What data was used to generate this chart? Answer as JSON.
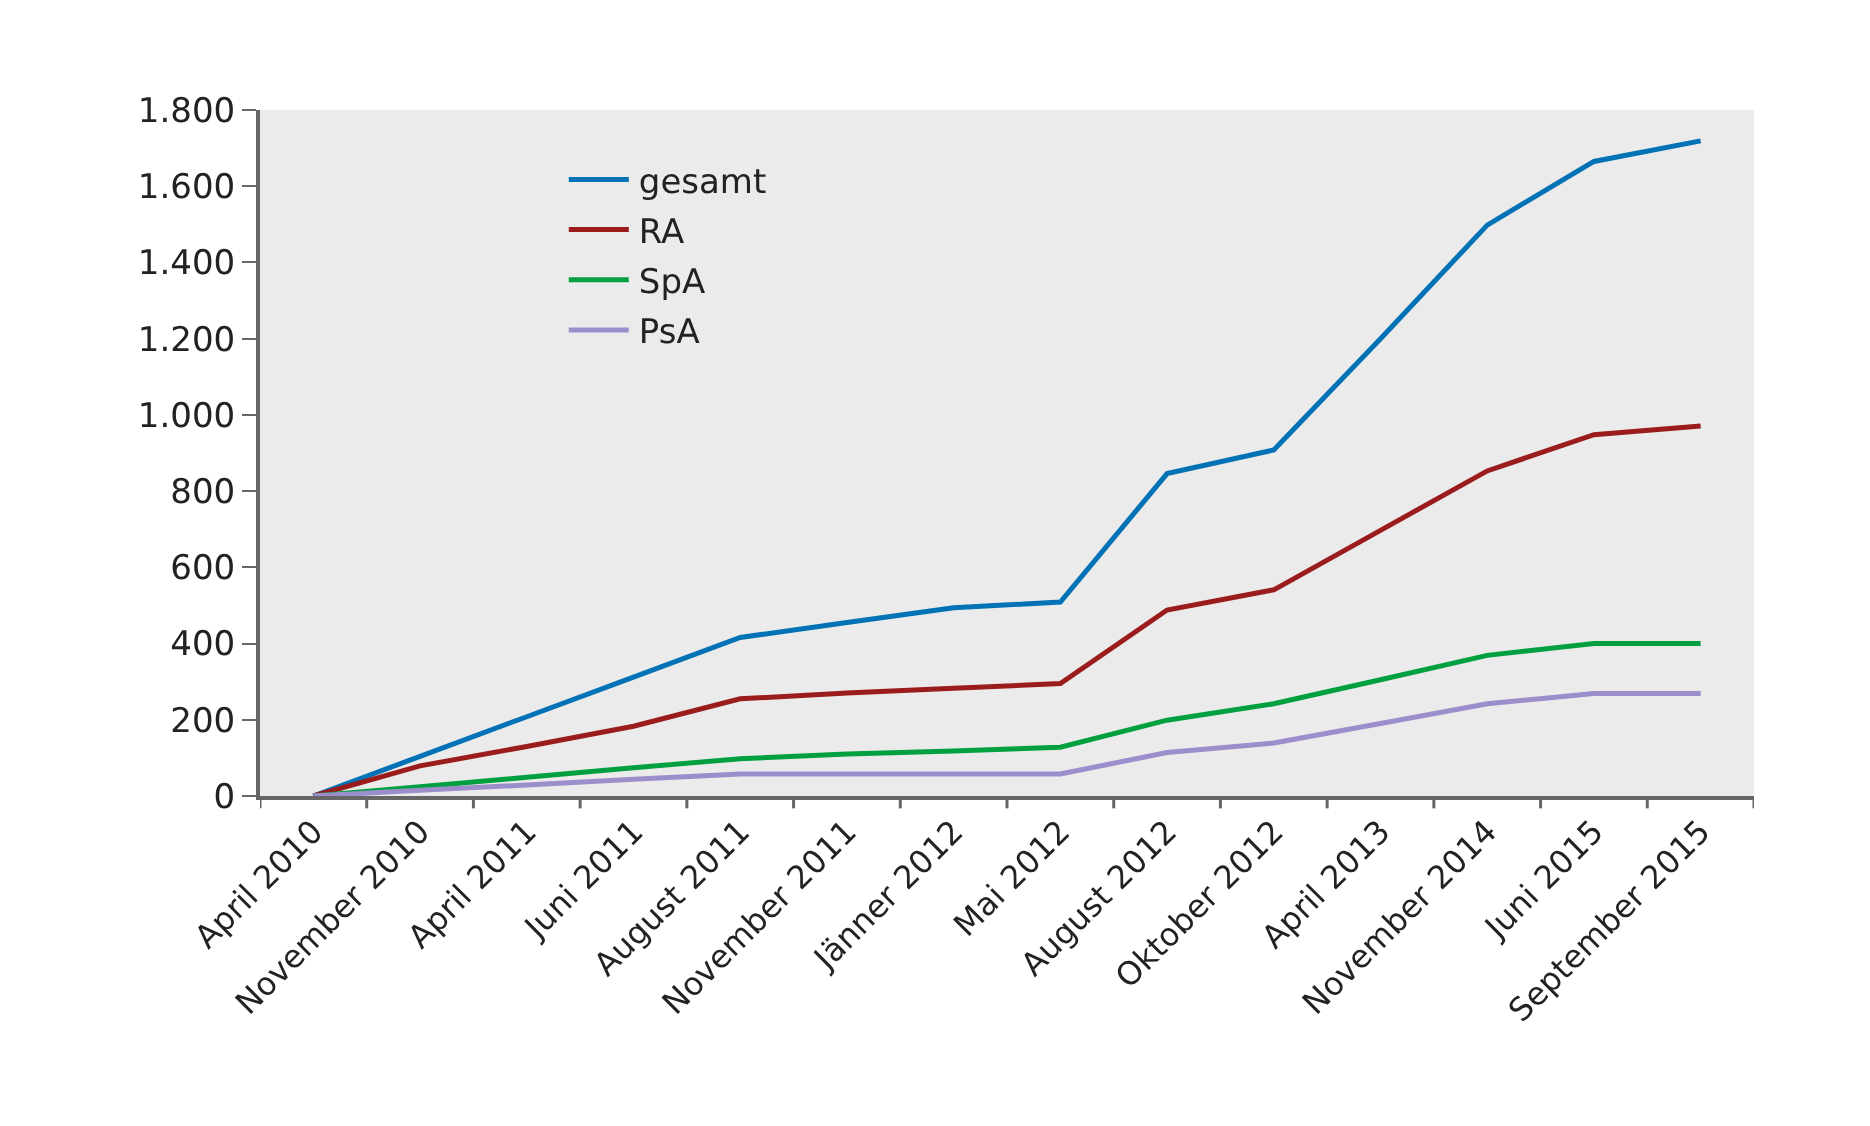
{
  "chart_data": {
    "type": "line",
    "categories": [
      "April 2010",
      "November 2010",
      "April 2011",
      "Juni 2011",
      "August 2011",
      "November 2011",
      "Jänner 2012",
      "Mai 2012",
      "August 2012",
      "Oktober 2012",
      "April 2013",
      "November 2014",
      "Juni 2015",
      "September 2015"
    ],
    "series": [
      {
        "name": "gesamt",
        "color": "#0072b5",
        "values": [
          0,
          104,
          208,
          312,
          416,
          455,
          494,
          509,
          846,
          908,
          1200,
          1498,
          1665,
          1719
        ]
      },
      {
        "name": "RA",
        "color": "#9b1c1c",
        "values": [
          0,
          79,
          130,
          183,
          255,
          270,
          283,
          295,
          488,
          541,
          697,
          853,
          948,
          971
        ]
      },
      {
        "name": "SpA",
        "color": "#00a040",
        "values": [
          0,
          24,
          49,
          74,
          98,
          110,
          118,
          128,
          199,
          242,
          305,
          369,
          400,
          400
        ]
      },
      {
        "name": "PsA",
        "color": "#9c8dcb",
        "values": [
          0,
          15,
          29,
          44,
          58,
          58,
          58,
          58,
          114,
          139,
          190,
          242,
          269,
          269
        ]
      }
    ],
    "ylim": [
      0,
      1800
    ],
    "yticks": [
      0,
      200,
      400,
      600,
      800,
      {
        "value": 1000,
        "label": "1.000"
      },
      {
        "value": 1200,
        "label": "1.200"
      },
      {
        "value": 1400,
        "label": "1.400"
      },
      {
        "value": 1600,
        "label": "1.600"
      },
      {
        "value": 1800,
        "label": "1.800"
      }
    ],
    "grid": false,
    "legend": "top left",
    "marker": "none",
    "line_style": "solid"
  }
}
